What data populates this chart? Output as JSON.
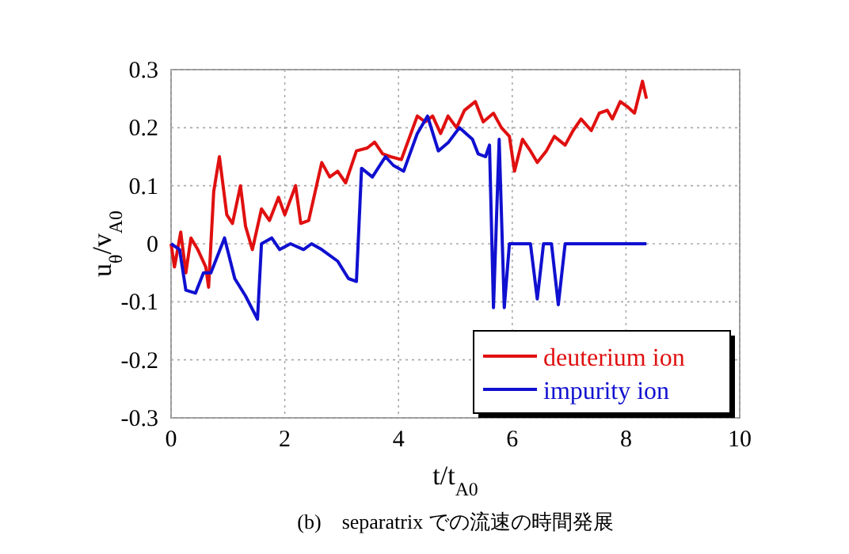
{
  "chart_data": {
    "type": "line",
    "xlabel": "t/t$_{A0}$",
    "ylabel": "u$_{θ}$/v$_{A0}$",
    "xlim": [
      0,
      10
    ],
    "ylim": [
      -0.3,
      0.3
    ],
    "xticks": [
      0,
      2,
      4,
      6,
      8,
      10
    ],
    "yticks": [
      -0.3,
      -0.2,
      -0.1,
      0,
      0.1,
      0.2,
      0.3
    ],
    "grid": true,
    "legend": "bottom right",
    "marker": "none",
    "line_style": "solid",
    "annotations": [
      "(b)　separatrix での流速の時間発展"
    ],
    "series": [
      {
        "name": "deuterium ion",
        "color": "#e01010",
        "x": [
          0,
          0.06,
          0.17,
          0.26,
          0.35,
          0.47,
          0.61,
          0.66,
          0.75,
          0.85,
          0.98,
          1.08,
          1.22,
          1.31,
          1.43,
          1.59,
          1.73,
          1.89,
          2.0,
          2.19,
          2.28,
          2.42,
          2.65,
          2.79,
          2.93,
          3.07,
          3.26,
          3.45,
          3.58,
          3.72,
          3.86,
          4.05,
          4.33,
          4.47,
          4.6,
          4.74,
          4.87,
          5.02,
          5.16,
          5.35,
          5.49,
          5.67,
          5.81,
          5.95,
          6.04,
          6.18,
          6.32,
          6.44,
          6.6,
          6.74,
          6.93,
          7.07,
          7.21,
          7.39,
          7.53,
          7.67,
          7.76,
          7.9,
          8.04,
          8.15,
          8.29,
          8.36
        ],
        "values": [
          0,
          -0.04,
          0.02,
          -0.05,
          0.01,
          -0.01,
          -0.04,
          -0.075,
          0.09,
          0.15,
          0.05,
          0.035,
          0.1,
          0.03,
          -0.01,
          0.06,
          0.04,
          0.08,
          0.05,
          0.1,
          0.035,
          0.04,
          0.14,
          0.115,
          0.125,
          0.105,
          0.16,
          0.165,
          0.175,
          0.155,
          0.15,
          0.145,
          0.22,
          0.21,
          0.22,
          0.19,
          0.22,
          0.2,
          0.23,
          0.245,
          0.21,
          0.225,
          0.2,
          0.185,
          0.125,
          0.18,
          0.16,
          0.14,
          0.16,
          0.185,
          0.17,
          0.195,
          0.215,
          0.195,
          0.225,
          0.23,
          0.215,
          0.245,
          0.235,
          0.225,
          0.28,
          0.25
        ]
      },
      {
        "name": "impurity ion",
        "color": "#1010d0",
        "x": [
          0,
          0.15,
          0.26,
          0.43,
          0.57,
          0.7,
          0.94,
          1.12,
          1.31,
          1.52,
          1.59,
          1.77,
          1.91,
          2.1,
          2.33,
          2.47,
          2.65,
          2.93,
          3.12,
          3.26,
          3.35,
          3.54,
          3.77,
          3.91,
          4.09,
          4.33,
          4.51,
          4.7,
          4.88,
          5.07,
          5.3,
          5.4,
          5.53,
          5.6,
          5.67,
          5.77,
          5.86,
          5.95,
          6.32,
          6.44,
          6.55,
          6.69,
          6.81,
          6.93,
          8.36
        ],
        "values": [
          0,
          -0.01,
          -0.08,
          -0.085,
          -0.05,
          -0.05,
          0.01,
          -0.06,
          -0.09,
          -0.13,
          0,
          0.01,
          -0.01,
          0,
          -0.01,
          0,
          -0.01,
          -0.03,
          -0.06,
          -0.065,
          0.13,
          0.115,
          0.15,
          0.135,
          0.125,
          0.19,
          0.22,
          0.16,
          0.175,
          0.2,
          0.18,
          0.155,
          0.15,
          0.17,
          -0.11,
          0.18,
          -0.11,
          0,
          0,
          -0.095,
          0,
          0,
          -0.105,
          0,
          0
        ]
      }
    ]
  }
}
